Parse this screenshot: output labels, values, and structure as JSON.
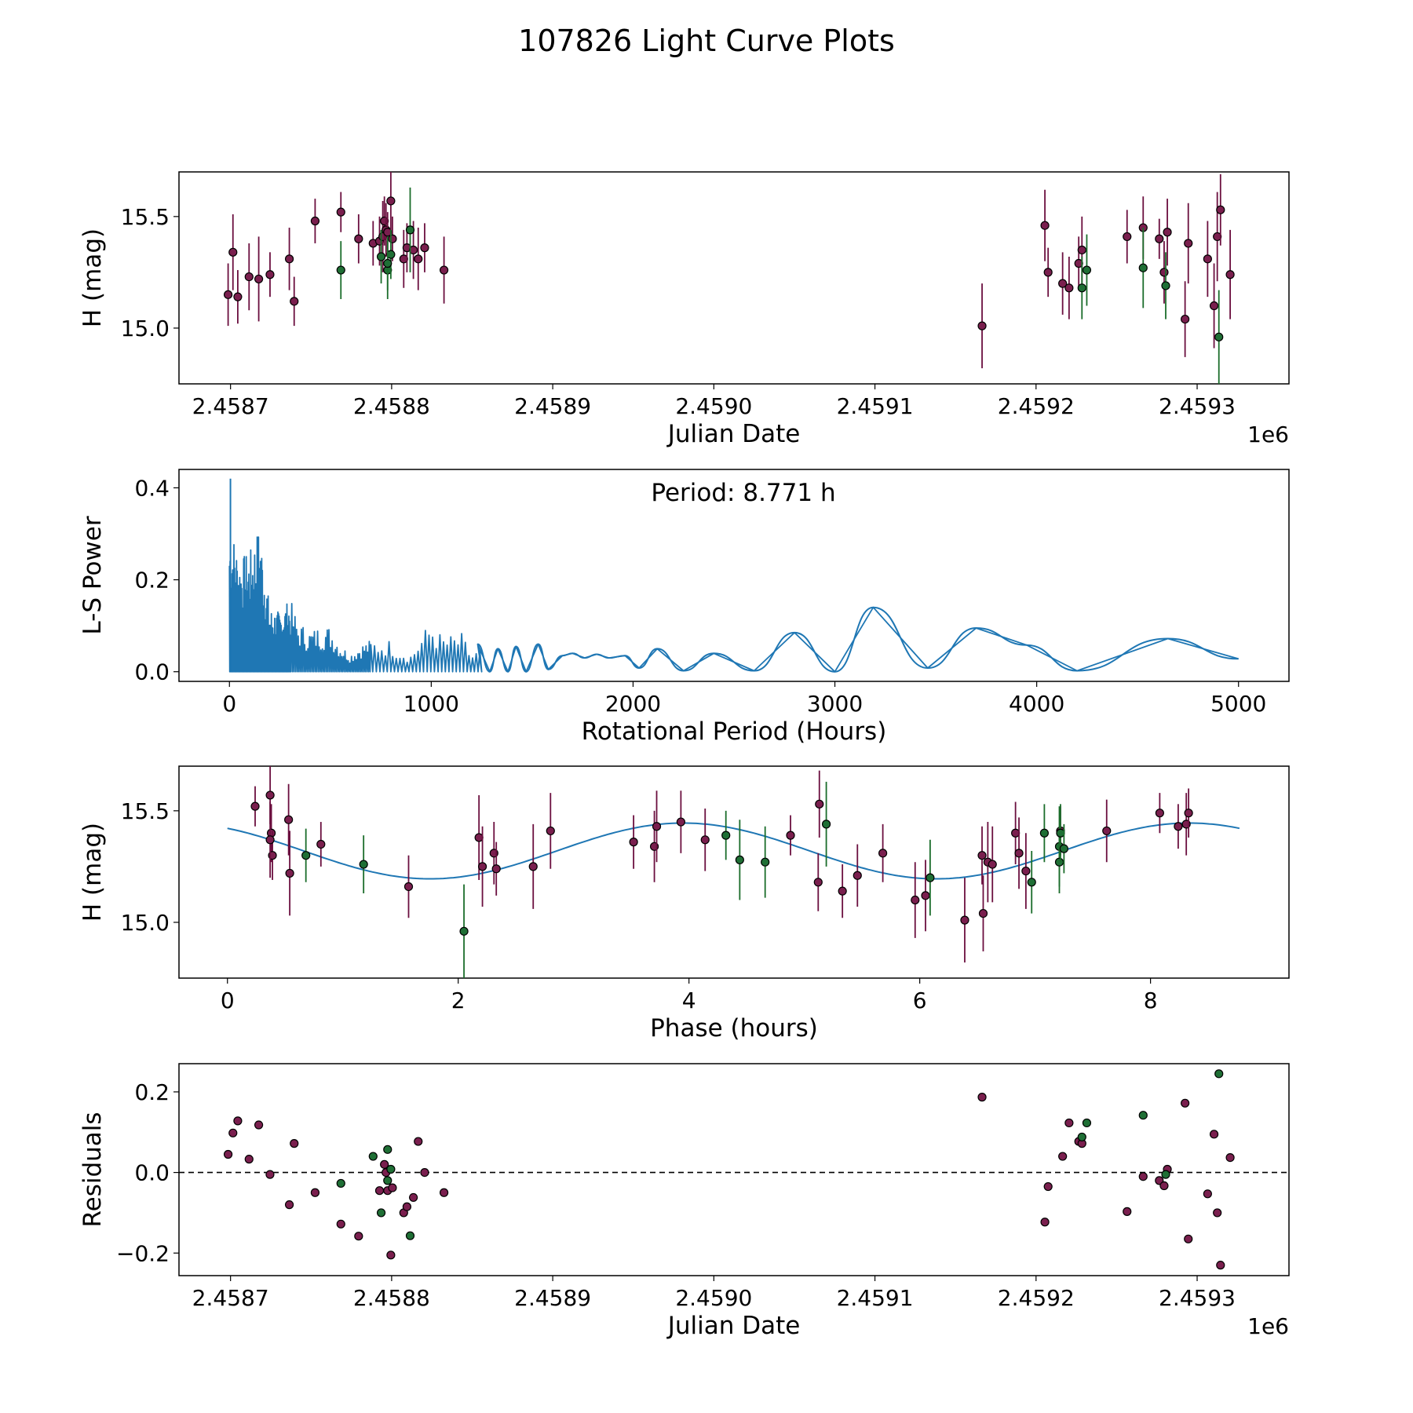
{
  "title": "107826 Light Curve Plots",
  "colors": {
    "maroon": "#7a1f4e",
    "green": "#1f6f35",
    "curve": "#1f77b4",
    "errbar_maroon": "#6b0f3f",
    "errbar_green": "#1b6d2b"
  },
  "chart_data": [
    {
      "type": "scatter",
      "id": "lightcurve",
      "xlabel": "Julian Date",
      "ylabel": "H (mag)",
      "offset_text": "1e6",
      "xlim": [
        2458668,
        2459357
      ],
      "ylim": [
        14.75,
        15.7
      ],
      "xticks": [
        2458700,
        2458800,
        2458900,
        2459000,
        2459100,
        2459200,
        2459300
      ],
      "xticklabels": [
        "2.4587",
        "2.4588",
        "2.4589",
        "2.4590",
        "2.4591",
        "2.4592",
        "2.4593"
      ],
      "yticks": [
        15.0,
        15.5
      ],
      "yticklabels": [
        "15.0",
        "15.5"
      ],
      "series": [
        {
          "name": "maroon",
          "color": "maroon",
          "x": [
            2458698.5,
            2458701.5,
            2458704.5,
            2458711.5,
            2458717.5,
            2458724.5,
            2458736.5,
            2458739.5,
            2458752.5,
            2458768.5,
            2458779.5,
            2458788.5,
            2458792.5,
            2458794.5,
            2458795.5,
            2458796.5,
            2458797.5,
            2458799.5,
            2458800.5,
            2458807.5,
            2458809.5,
            2458813.5,
            2458816.5,
            2458820.5,
            2458832.5,
            2459166.5,
            2459205.5,
            2459207.5,
            2459216.5,
            2459220.5,
            2459226.5,
            2459228.5,
            2459256.5,
            2459266.5,
            2459276.5,
            2459279.5,
            2459281.5,
            2459292.5,
            2459294.5,
            2459306.5,
            2459310.5,
            2459312.5,
            2459314.5,
            2459320.5
          ],
          "y": [
            15.15,
            15.34,
            15.14,
            15.23,
            15.22,
            15.24,
            15.31,
            15.12,
            15.48,
            15.52,
            15.4,
            15.38,
            15.39,
            15.41,
            15.48,
            15.44,
            15.43,
            15.57,
            15.4,
            15.31,
            15.36,
            15.35,
            15.31,
            15.36,
            15.26,
            15.01,
            15.46,
            15.25,
            15.2,
            15.18,
            15.29,
            15.35,
            15.41,
            15.45,
            15.4,
            15.25,
            15.43,
            15.04,
            15.38,
            15.31,
            15.1,
            15.41,
            15.53,
            15.24
          ],
          "err": [
            0.14,
            0.17,
            0.12,
            0.15,
            0.19,
            0.1,
            0.14,
            0.11,
            0.1,
            0.09,
            0.11,
            0.1,
            0.11,
            0.16,
            0.11,
            0.12,
            0.09,
            0.13,
            0.1,
            0.13,
            0.11,
            0.13,
            0.14,
            0.11,
            0.15,
            0.19,
            0.16,
            0.11,
            0.14,
            0.14,
            0.12,
            0.15,
            0.12,
            0.14,
            0.09,
            0.14,
            0.15,
            0.17,
            0.18,
            0.17,
            0.19,
            0.2,
            0.16,
            0.2
          ]
        },
        {
          "name": "green",
          "color": "green",
          "x": [
            2458768.5,
            2458793.5,
            2458797.5,
            2458799.5,
            2458797.5,
            2458811.5,
            2459228.5,
            2459231.5,
            2459266.5,
            2459280.5,
            2459313.5
          ],
          "y": [
            15.26,
            15.32,
            15.26,
            15.33,
            15.29,
            15.44,
            15.18,
            15.26,
            15.27,
            15.19,
            14.96
          ],
          "err": [
            0.13,
            0.12,
            0.13,
            0.11,
            0.12,
            0.19,
            0.14,
            0.16,
            0.18,
            0.15,
            0.21
          ]
        }
      ]
    },
    {
      "type": "line",
      "id": "periodogram",
      "xlabel": "Rotational Period (Hours)",
      "ylabel": "L-S Power",
      "annotation": "Period: 8.771 h",
      "xlim": [
        -250,
        5250
      ],
      "ylim": [
        -0.021,
        0.44
      ],
      "xticks": [
        0,
        1000,
        2000,
        3000,
        4000,
        5000
      ],
      "xticklabels": [
        "0",
        "1000",
        "2000",
        "3000",
        "4000",
        "5000"
      ],
      "yticks": [
        0.0,
        0.2,
        0.4
      ],
      "yticklabels": [
        "0.0",
        "0.2",
        "0.4"
      ],
      "peak": {
        "x": 5,
        "y": 0.42
      },
      "envelope": [
        [
          0,
          0.32
        ],
        [
          20,
          0.3
        ],
        [
          50,
          0.25
        ],
        [
          100,
          0.26
        ],
        [
          150,
          0.32
        ],
        [
          200,
          0.14
        ],
        [
          250,
          0.13
        ],
        [
          300,
          0.16
        ],
        [
          340,
          0.11
        ],
        [
          400,
          0.09
        ],
        [
          450,
          0.1
        ],
        [
          500,
          0.1
        ],
        [
          550,
          0.06
        ],
        [
          600,
          0.04
        ],
        [
          650,
          0.06
        ],
        [
          700,
          0.07
        ],
        [
          750,
          0.07
        ],
        [
          800,
          0.07
        ],
        [
          850,
          0.05
        ],
        [
          900,
          0.04
        ],
        [
          950,
          0.08
        ],
        [
          1000,
          0.115
        ],
        [
          1050,
          0.08
        ],
        [
          1100,
          0.08
        ],
        [
          1150,
          0.085
        ],
        [
          1200,
          0.04
        ],
        [
          1250,
          0.055
        ]
      ],
      "smooth_points": [
        [
          1230,
          0.06
        ],
        [
          1290,
          0.0
        ],
        [
          1330,
          0.05
        ],
        [
          1380,
          0.0
        ],
        [
          1420,
          0.055
        ],
        [
          1470,
          0.0
        ],
        [
          1530,
          0.06
        ],
        [
          1580,
          0.005
        ],
        [
          1650,
          0.035
        ],
        [
          1700,
          0.04
        ],
        [
          1760,
          0.03
        ],
        [
          1820,
          0.038
        ],
        [
          1880,
          0.03
        ],
        [
          1960,
          0.035
        ],
        [
          2030,
          0.008
        ],
        [
          2120,
          0.05
        ],
        [
          2250,
          0.002
        ],
        [
          2400,
          0.04
        ],
        [
          2600,
          0.002
        ],
        [
          2800,
          0.085
        ],
        [
          3000,
          0.0
        ],
        [
          3190,
          0.14
        ],
        [
          3460,
          0.008
        ],
        [
          3700,
          0.095
        ],
        [
          3950,
          0.058
        ],
        [
          4200,
          0.002
        ],
        [
          4650,
          0.072
        ],
        [
          5000,
          0.028
        ]
      ]
    },
    {
      "type": "scatter",
      "id": "phased",
      "xlabel": "Phase (hours)",
      "ylabel": "H (mag)",
      "xlim": [
        -0.42,
        9.2
      ],
      "ylim": [
        14.75,
        15.7
      ],
      "xticks": [
        0,
        2,
        4,
        6,
        8
      ],
      "xticklabels": [
        "0",
        "2",
        "4",
        "6",
        "8"
      ],
      "yticks": [
        15.0,
        15.5
      ],
      "yticklabels": [
        "15.0",
        "15.5"
      ],
      "fit": {
        "mean": 15.32,
        "amplitude": 0.125,
        "period": 4.3855,
        "phase_of_max": 3.95,
        "x_end": 8.771
      },
      "series": [
        {
          "name": "maroon",
          "color": "maroon",
          "x": [
            0.24,
            0.37,
            0.38,
            0.39,
            0.37,
            0.53,
            0.54,
            0.81,
            1.57,
            2.18,
            2.21,
            2.31,
            2.33,
            2.65,
            2.8,
            3.52,
            3.7,
            3.72,
            3.93,
            4.14,
            4.88,
            5.12,
            5.13,
            5.33,
            5.46,
            5.68,
            5.96,
            6.05,
            6.39,
            6.54,
            6.55,
            6.59,
            6.63,
            6.83,
            6.86,
            6.92,
            7.22,
            7.62,
            8.08,
            8.24,
            8.31,
            8.33
          ],
          "y": [
            15.52,
            15.57,
            15.4,
            15.3,
            15.37,
            15.46,
            15.22,
            15.35,
            15.16,
            15.38,
            15.25,
            15.31,
            15.24,
            15.25,
            15.41,
            15.36,
            15.34,
            15.43,
            15.45,
            15.37,
            15.39,
            15.18,
            15.53,
            15.14,
            15.21,
            15.31,
            15.1,
            15.12,
            15.01,
            15.3,
            15.04,
            15.27,
            15.26,
            15.4,
            15.31,
            15.23,
            15.41,
            15.41,
            15.49,
            15.43,
            15.44,
            15.49
          ],
          "err": [
            0.09,
            0.13,
            0.13,
            0.11,
            0.17,
            0.16,
            0.19,
            0.1,
            0.14,
            0.19,
            0.18,
            0.14,
            0.12,
            0.19,
            0.17,
            0.12,
            0.16,
            0.16,
            0.14,
            0.14,
            0.09,
            0.13,
            0.15,
            0.12,
            0.14,
            0.13,
            0.17,
            0.16,
            0.19,
            0.13,
            0.17,
            0.18,
            0.17,
            0.14,
            0.16,
            0.17,
            0.11,
            0.14,
            0.09,
            0.1,
            0.14,
            0.11
          ]
        },
        {
          "name": "green",
          "color": "green",
          "x": [
            0.68,
            1.18,
            2.05,
            4.32,
            4.44,
            4.66,
            5.19,
            6.09,
            6.97,
            7.08,
            7.21,
            7.21,
            7.22,
            7.25
          ],
          "y": [
            15.3,
            15.26,
            14.96,
            15.39,
            15.28,
            15.27,
            15.44,
            15.2,
            15.18,
            15.4,
            15.34,
            15.27,
            15.4,
            15.33
          ],
          "err": [
            0.12,
            0.13,
            0.21,
            0.11,
            0.18,
            0.16,
            0.19,
            0.17,
            0.14,
            0.13,
            0.18,
            0.14,
            0.13,
            0.11
          ]
        }
      ]
    },
    {
      "type": "scatter",
      "id": "residuals",
      "xlabel": "Julian Date",
      "ylabel": "Residuals",
      "offset_text": "1e6",
      "xlim": [
        2458668,
        2459357
      ],
      "ylim": [
        -0.256,
        0.27
      ],
      "xticks": [
        2458700,
        2458800,
        2458900,
        2459000,
        2459100,
        2459200,
        2459300
      ],
      "xticklabels": [
        "2.4587",
        "2.4588",
        "2.4589",
        "2.4590",
        "2.4591",
        "2.4592",
        "2.4593"
      ],
      "yticks": [
        -0.2,
        0.0,
        0.2
      ],
      "yticklabels": [
        "−0.2",
        "0.0",
        "0.2"
      ],
      "reference_line": 0.0,
      "series": [
        {
          "name": "maroon",
          "color": "maroon",
          "x": [
            2458698.5,
            2458701.5,
            2458704.5,
            2458711.5,
            2458717.5,
            2458724.5,
            2458736.5,
            2458739.5,
            2458752.5,
            2458768.5,
            2458779.5,
            2458792.5,
            2458795.5,
            2458796.5,
            2458797.5,
            2458799.5,
            2458800.5,
            2458807.5,
            2458809.5,
            2458813.5,
            2458816.5,
            2458820.5,
            2458832.5,
            2459166.5,
            2459205.5,
            2459207.5,
            2459216.5,
            2459220.5,
            2459226.5,
            2459228.5,
            2459256.5,
            2459266.5,
            2459276.5,
            2459279.5,
            2459281.5,
            2459292.5,
            2459294.5,
            2459306.5,
            2459310.5,
            2459312.5,
            2459314.5,
            2459320.5
          ],
          "y": [
            0.045,
            0.098,
            0.128,
            0.033,
            0.118,
            -0.005,
            -0.08,
            0.072,
            -0.05,
            -0.128,
            -0.158,
            -0.045,
            0.02,
            0.0,
            -0.045,
            -0.205,
            -0.038,
            -0.1,
            -0.085,
            -0.062,
            0.077,
            0.0,
            -0.05,
            0.187,
            -0.123,
            -0.035,
            0.04,
            0.123,
            0.077,
            0.072,
            -0.097,
            -0.01,
            -0.02,
            -0.033,
            0.008,
            0.172,
            -0.165,
            -0.053,
            0.095,
            -0.1,
            -0.23,
            0.037
          ]
        },
        {
          "name": "green",
          "color": "green",
          "x": [
            2458768.5,
            2458788.5,
            2458793.5,
            2458797.5,
            2458799.5,
            2458797.5,
            2458811.5,
            2459228.5,
            2459231.5,
            2459266.5,
            2459280.5,
            2459313.5
          ],
          "y": [
            -0.027,
            0.04,
            -0.1,
            0.057,
            0.008,
            -0.02,
            -0.157,
            0.088,
            0.123,
            0.142,
            -0.005,
            0.245
          ]
        }
      ]
    }
  ]
}
